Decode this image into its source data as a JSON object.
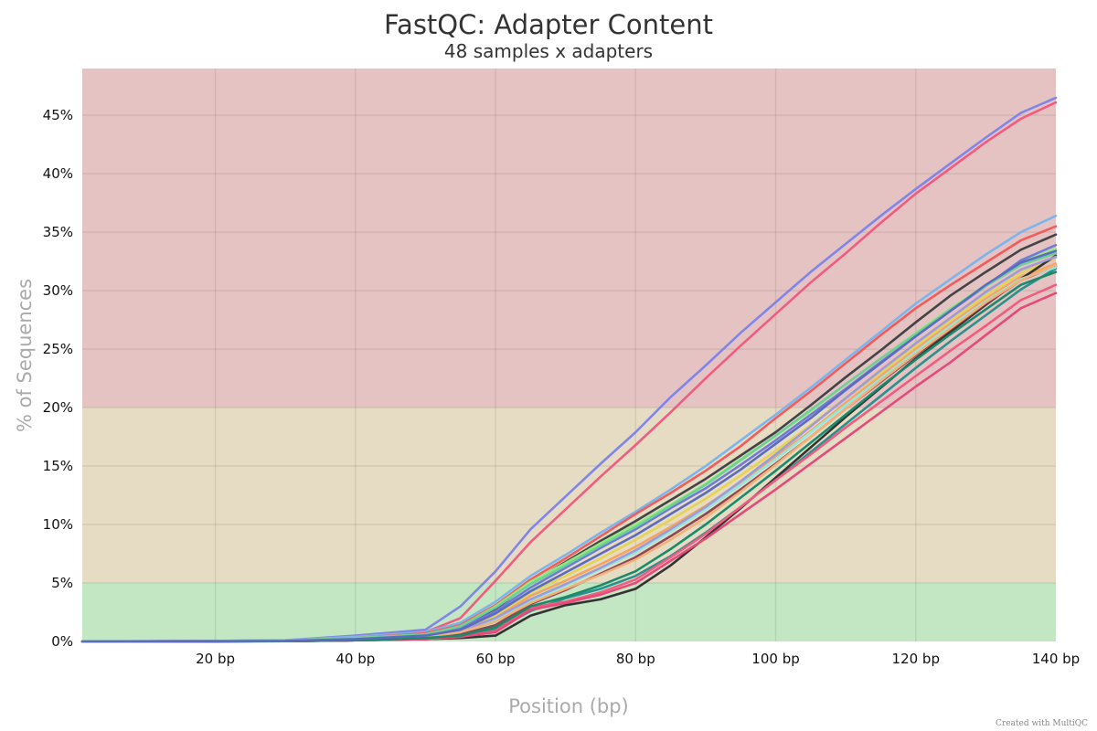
{
  "chart_data": {
    "type": "line",
    "title": "FastQC: Adapter Content",
    "subtitle": "48 samples x adapters",
    "xlabel": "Position (bp)",
    "ylabel": "% of Sequences",
    "xlim": [
      1,
      140
    ],
    "ylim": [
      0,
      49
    ],
    "x_ticks": [
      20,
      40,
      60,
      80,
      100,
      120,
      140
    ],
    "x_tick_labels": [
      "20 bp",
      "40 bp",
      "60 bp",
      "80 bp",
      "100 bp",
      "120 bp",
      "140 bp"
    ],
    "y_ticks": [
      0,
      5,
      10,
      15,
      20,
      25,
      30,
      35,
      40,
      45
    ],
    "y_tick_labels": [
      "0%",
      "5%",
      "10%",
      "15%",
      "20%",
      "25%",
      "30%",
      "35%",
      "40%",
      "45%"
    ],
    "grid": true,
    "legend": "none",
    "bands": [
      {
        "from": 0,
        "to": 5,
        "color": "#c3e6c3"
      },
      {
        "from": 5,
        "to": 20,
        "color": "#e6dcc3"
      },
      {
        "from": 20,
        "to": 49,
        "color": "#e6c3c3"
      }
    ],
    "x": [
      1,
      20,
      30,
      40,
      50,
      55,
      60,
      65,
      70,
      75,
      80,
      85,
      90,
      95,
      100,
      105,
      110,
      115,
      120,
      125,
      130,
      135,
      140
    ],
    "series": [
      {
        "color": "#8085e9",
        "values": [
          0,
          0.05,
          0.1,
          0.5,
          1.0,
          3.0,
          6.0,
          9.6,
          12.4,
          15.2,
          17.9,
          20.9,
          23.6,
          26.4,
          29.0,
          31.6,
          34.0,
          36.4,
          38.7,
          40.9,
          43.1,
          45.2,
          46.5
        ]
      },
      {
        "color": "#f15c80",
        "values": [
          0,
          0.03,
          0.08,
          0.4,
          0.8,
          2.0,
          5.2,
          8.5,
          11.3,
          14.1,
          16.8,
          19.6,
          22.5,
          25.3,
          28.0,
          30.7,
          33.2,
          35.8,
          38.3,
          40.5,
          42.7,
          44.7,
          46.1
        ]
      },
      {
        "color": "#7cb5ec",
        "values": [
          0,
          0.04,
          0.1,
          0.4,
          0.8,
          1.6,
          3.4,
          5.6,
          7.4,
          9.3,
          11.1,
          13.0,
          15.0,
          17.2,
          19.4,
          21.7,
          24.1,
          26.5,
          28.9,
          31.0,
          33.1,
          35.0,
          36.4
        ]
      },
      {
        "color": "#f45b5b",
        "values": [
          0,
          0.03,
          0.08,
          0.3,
          0.7,
          1.4,
          3.1,
          5.3,
          7.1,
          9.0,
          10.9,
          12.7,
          14.6,
          16.7,
          19.1,
          21.4,
          23.8,
          26.2,
          28.5,
          30.5,
          32.4,
          34.3,
          35.5
        ]
      },
      {
        "color": "#434348",
        "values": [
          0,
          0.02,
          0.05,
          0.2,
          0.5,
          1.2,
          2.8,
          5.0,
          6.8,
          8.6,
          10.3,
          12.1,
          13.9,
          15.9,
          17.9,
          20.2,
          22.6,
          24.9,
          27.3,
          29.6,
          31.6,
          33.5,
          34.8
        ]
      },
      {
        "color": "#90ed7d",
        "values": [
          0,
          0.03,
          0.06,
          0.3,
          0.6,
          1.3,
          3.0,
          5.1,
          6.7,
          8.4,
          10.0,
          11.7,
          13.5,
          15.6,
          17.6,
          19.7,
          22.0,
          24.2,
          26.4,
          28.5,
          30.5,
          32.4,
          33.6
        ]
      },
      {
        "color": "#6f7bd8",
        "values": [
          0,
          0.02,
          0.05,
          0.2,
          0.5,
          1.1,
          2.6,
          4.6,
          6.3,
          8.0,
          9.6,
          11.4,
          13.1,
          15.1,
          17.2,
          19.4,
          21.6,
          23.9,
          26.1,
          28.3,
          30.4,
          32.6,
          33.9
        ]
      },
      {
        "color": "#e4d354",
        "values": [
          0,
          0.02,
          0.05,
          0.2,
          0.4,
          1.0,
          2.2,
          4.2,
          5.6,
          7.1,
          8.7,
          10.4,
          12.2,
          14.2,
          16.3,
          18.5,
          20.8,
          23.0,
          25.3,
          27.5,
          29.6,
          31.5,
          32.8
        ]
      },
      {
        "color": "#f7a35c",
        "values": [
          0,
          0.02,
          0.04,
          0.2,
          0.4,
          0.9,
          2.0,
          3.9,
          5.2,
          6.6,
          8.1,
          9.8,
          11.6,
          13.6,
          15.8,
          18.0,
          20.4,
          22.7,
          25.0,
          27.2,
          29.3,
          31.2,
          32.3
        ]
      },
      {
        "color": "#2b908f",
        "values": [
          0,
          0.01,
          0.03,
          0.1,
          0.3,
          0.5,
          1.0,
          2.6,
          3.7,
          4.5,
          5.6,
          7.3,
          9.3,
          11.5,
          13.8,
          16.2,
          18.6,
          21.0,
          23.4,
          25.7,
          27.9,
          30.1,
          31.9
        ]
      },
      {
        "color": "#333333",
        "values": [
          0,
          0.01,
          0.02,
          0.1,
          0.2,
          0.3,
          0.5,
          2.2,
          3.1,
          3.6,
          4.5,
          6.5,
          8.9,
          11.4,
          14.0,
          16.6,
          19.2,
          21.7,
          24.2,
          26.5,
          28.8,
          31.0,
          33.0
        ]
      },
      {
        "color": "#f15c80",
        "values": [
          0,
          0.01,
          0.02,
          0.1,
          0.2,
          0.4,
          0.9,
          2.9,
          3.4,
          4.2,
          5.3,
          7.2,
          9.2,
          11.5,
          13.8,
          16.0,
          18.3,
          20.5,
          22.7,
          24.9,
          27.0,
          29.2,
          30.5
        ]
      },
      {
        "color": "#e64a7a",
        "values": [
          0,
          0.01,
          0.02,
          0.1,
          0.2,
          0.4,
          0.8,
          2.7,
          3.3,
          4.0,
          5.0,
          6.9,
          8.8,
          10.9,
          13.0,
          15.2,
          17.4,
          19.6,
          21.8,
          23.9,
          26.2,
          28.5,
          29.8
        ]
      },
      {
        "color": "#8d4654",
        "values": [
          0,
          0.01,
          0.03,
          0.1,
          0.3,
          0.6,
          1.4,
          3.2,
          4.4,
          5.8,
          7.2,
          9.0,
          10.9,
          13.0,
          15.2,
          17.5,
          19.9,
          22.2,
          24.5,
          26.7,
          28.9,
          30.9,
          32.1
        ]
      },
      {
        "color": "#91e8e1",
        "values": [
          0,
          0.02,
          0.04,
          0.2,
          0.4,
          0.8,
          1.8,
          3.5,
          4.8,
          6.2,
          7.6,
          9.4,
          11.3,
          13.4,
          15.6,
          17.9,
          20.2,
          22.5,
          24.8,
          27.0,
          29.1,
          31.0,
          32.0
        ]
      },
      {
        "color": "#a09bd6",
        "values": [
          0,
          0.02,
          0.04,
          0.2,
          0.4,
          0.9,
          2.0,
          3.6,
          4.9,
          6.3,
          7.8,
          9.6,
          11.5,
          13.7,
          16.0,
          18.4,
          20.8,
          23.2,
          25.5,
          27.7,
          29.9,
          31.8,
          32.9
        ]
      },
      {
        "color": "#f0b27a",
        "values": [
          0,
          0.02,
          0.04,
          0.2,
          0.4,
          0.8,
          1.7,
          3.3,
          4.5,
          5.7,
          7.0,
          8.7,
          10.6,
          12.8,
          15.1,
          17.5,
          19.9,
          22.3,
          24.6,
          26.8,
          29.0,
          30.9,
          32.2
        ]
      },
      {
        "color": "#1b8a6b",
        "values": [
          0,
          0.01,
          0.03,
          0.1,
          0.3,
          0.5,
          1.2,
          3.0,
          3.8,
          4.8,
          6.0,
          7.9,
          10.0,
          12.3,
          14.6,
          17.0,
          19.4,
          21.8,
          24.1,
          26.3,
          28.4,
          30.5,
          31.6
        ]
      },
      {
        "color": "#6fcf97",
        "values": [
          0,
          0.03,
          0.06,
          0.3,
          0.6,
          1.3,
          2.9,
          4.9,
          6.5,
          8.2,
          9.8,
          11.6,
          13.4,
          15.5,
          17.6,
          19.8,
          22.0,
          24.2,
          26.3,
          28.4,
          30.4,
          32.2,
          33.2
        ]
      },
      {
        "color": "#5c6bc0",
        "values": [
          0,
          0.02,
          0.05,
          0.2,
          0.5,
          1.0,
          2.4,
          4.3,
          5.9,
          7.5,
          9.1,
          10.9,
          12.7,
          14.7,
          16.9,
          19.1,
          21.5,
          23.8,
          26.1,
          28.3,
          30.5,
          32.4,
          33.4
        ]
      }
    ]
  },
  "credit": "Created with MultiQC"
}
